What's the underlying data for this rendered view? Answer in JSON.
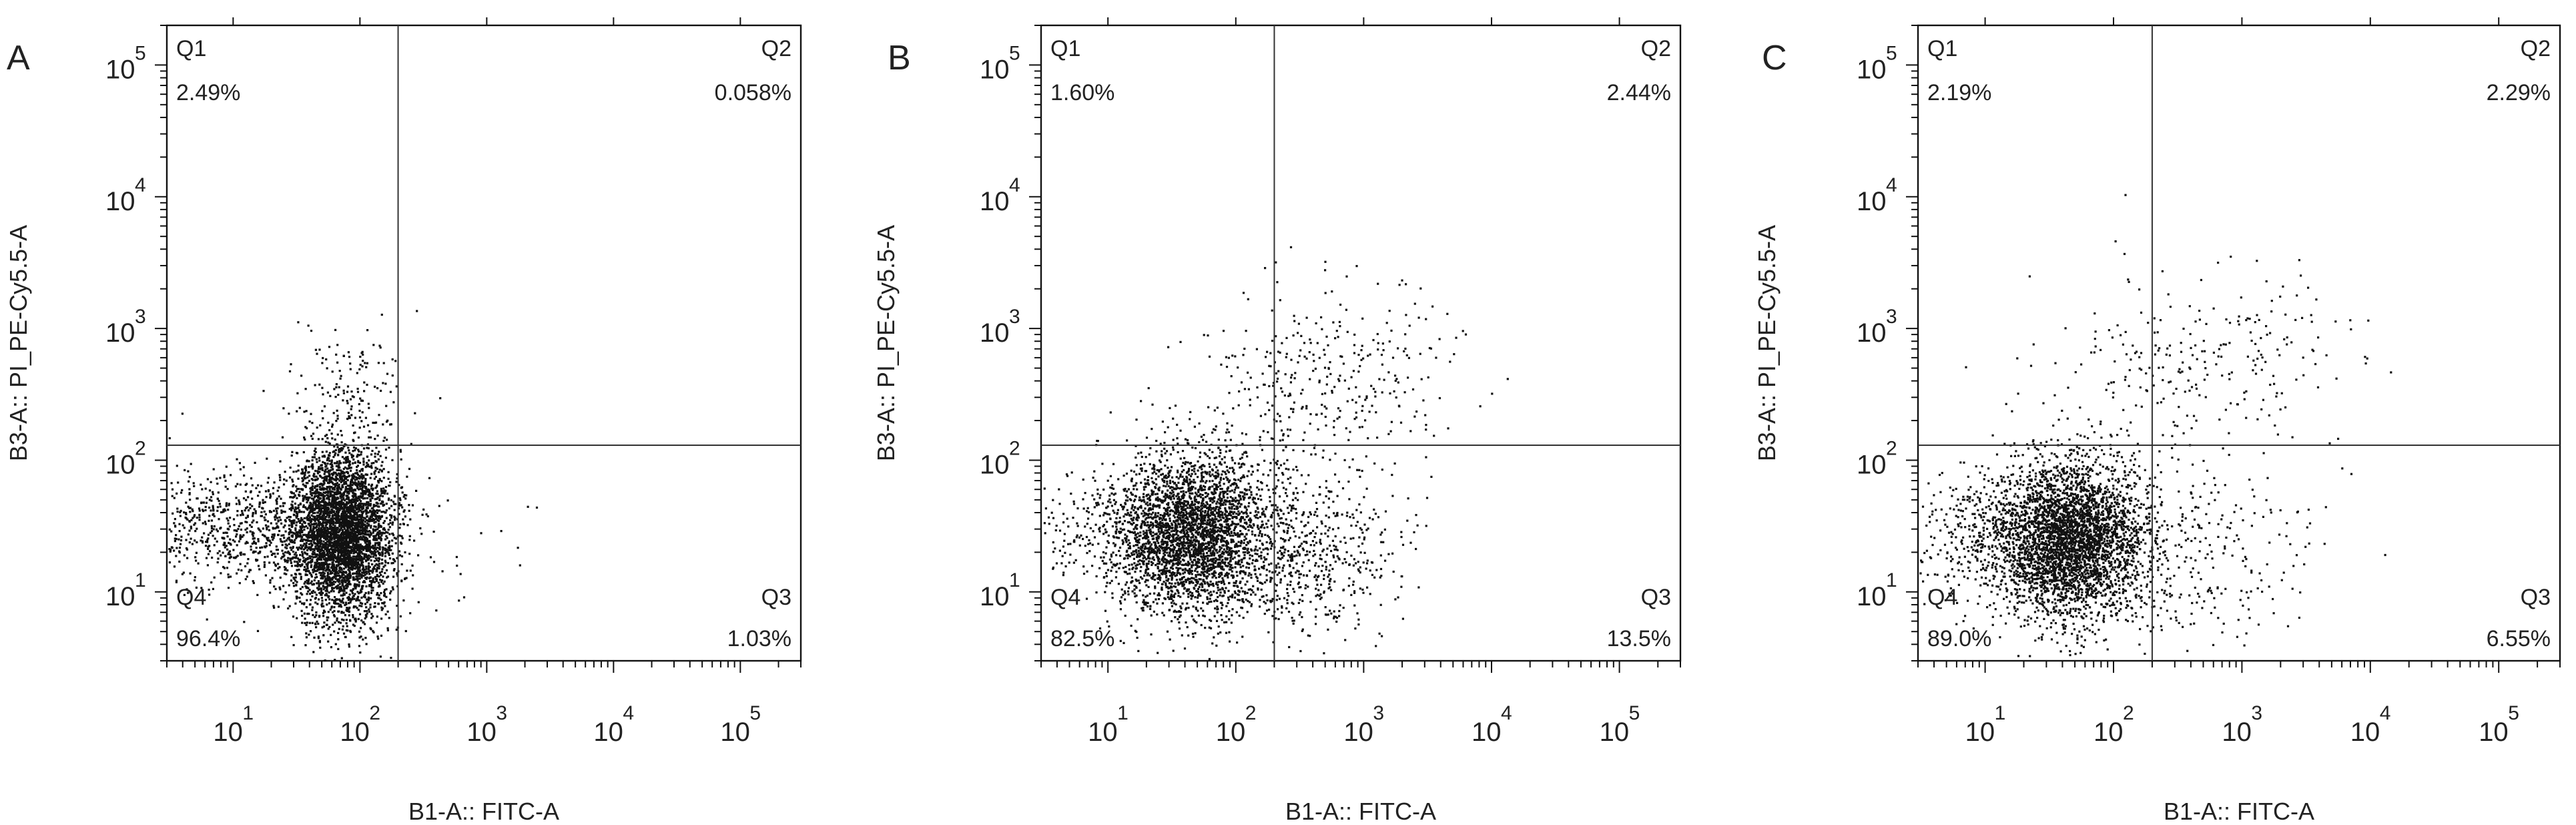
{
  "chart_data": [
    {
      "type": "scatter",
      "panel_label": "A",
      "xlabel": "B1-A:: FITC-A",
      "ylabel": "B3-A:: PI_PE-Cy5.5-A",
      "x_scale": "log",
      "y_scale": "log",
      "xlim": [
        3,
        300000
      ],
      "ylim": [
        3,
        200000
      ],
      "x_ticks": [
        {
          "label": "10",
          "exp": "1",
          "value": 10
        },
        {
          "label": "10",
          "exp": "2",
          "value": 100
        },
        {
          "label": "10",
          "exp": "3",
          "value": 1000
        },
        {
          "label": "10",
          "exp": "4",
          "value": 10000
        },
        {
          "label": "10",
          "exp": "5",
          "value": 100000
        }
      ],
      "y_ticks": [
        {
          "label": "10",
          "exp": "1",
          "value": 10
        },
        {
          "label": "10",
          "exp": "2",
          "value": 100
        },
        {
          "label": "10",
          "exp": "3",
          "value": 1000
        },
        {
          "label": "10",
          "exp": "4",
          "value": 10000
        },
        {
          "label": "10",
          "exp": "5",
          "value": 100000
        }
      ],
      "gate": {
        "x": 200,
        "y": 130
      },
      "quadrants": [
        {
          "name": "Q1",
          "percent": "2.49%"
        },
        {
          "name": "Q2",
          "percent": "0.058%"
        },
        {
          "name": "Q3",
          "percent": "1.03%"
        },
        {
          "name": "Q4",
          "percent": "96.4%"
        }
      ],
      "clusters": [
        {
          "n": 4200,
          "mx": 1.85,
          "sx": 0.2,
          "my": 1.45,
          "sy": 0.32
        },
        {
          "n": 700,
          "mx": 1.0,
          "sx": 0.4,
          "my": 1.5,
          "sy": 0.22
        },
        {
          "n": 140,
          "mx": 1.9,
          "sx": 0.25,
          "my": 2.55,
          "sy": 0.28
        },
        {
          "n": 60,
          "mx": 2.0,
          "sx": 0.7,
          "my": 1.4,
          "sy": 0.4
        }
      ],
      "seed": 11
    },
    {
      "type": "scatter",
      "panel_label": "B",
      "xlabel": "B1-A:: FITC-A",
      "ylabel": "B3-A:: PI_PE-Cy5.5-A",
      "x_scale": "log",
      "y_scale": "log",
      "xlim": [
        3,
        300000
      ],
      "ylim": [
        3,
        200000
      ],
      "x_ticks": [
        {
          "label": "10",
          "exp": "1",
          "value": 10
        },
        {
          "label": "10",
          "exp": "2",
          "value": 100
        },
        {
          "label": "10",
          "exp": "3",
          "value": 1000
        },
        {
          "label": "10",
          "exp": "4",
          "value": 10000
        },
        {
          "label": "10",
          "exp": "5",
          "value": 100000
        }
      ],
      "y_ticks": [
        {
          "label": "10",
          "exp": "1",
          "value": 10
        },
        {
          "label": "10",
          "exp": "2",
          "value": 100
        },
        {
          "label": "10",
          "exp": "3",
          "value": 1000
        },
        {
          "label": "10",
          "exp": "4",
          "value": 10000
        },
        {
          "label": "10",
          "exp": "5",
          "value": 100000
        }
      ],
      "gate": {
        "x": 200,
        "y": 130
      },
      "quadrants": [
        {
          "name": "Q1",
          "percent": "1.60%"
        },
        {
          "name": "Q2",
          "percent": "2.44%"
        },
        {
          "name": "Q3",
          "percent": "13.5%"
        },
        {
          "name": "Q4",
          "percent": "82.5%"
        }
      ],
      "clusters": [
        {
          "n": 3000,
          "mx": 1.65,
          "sx": 0.3,
          "my": 1.45,
          "sy": 0.3
        },
        {
          "n": 600,
          "mx": 2.55,
          "sx": 0.35,
          "my": 1.3,
          "sy": 0.35
        },
        {
          "n": 350,
          "mx": 2.7,
          "sx": 0.5,
          "my": 2.6,
          "sy": 0.35
        },
        {
          "n": 400,
          "mx": 1.1,
          "sx": 0.45,
          "my": 1.45,
          "sy": 0.25
        }
      ],
      "seed": 23
    },
    {
      "type": "scatter",
      "panel_label": "C",
      "xlabel": "B1-A:: FITC-A",
      "ylabel": "B3-A:: PI_PE-Cy5.5-A",
      "x_scale": "log",
      "y_scale": "log",
      "xlim": [
        3,
        300000
      ],
      "ylim": [
        3,
        200000
      ],
      "x_ticks": [
        {
          "label": "10",
          "exp": "1",
          "value": 10
        },
        {
          "label": "10",
          "exp": "2",
          "value": 100
        },
        {
          "label": "10",
          "exp": "3",
          "value": 1000
        },
        {
          "label": "10",
          "exp": "4",
          "value": 10000
        },
        {
          "label": "10",
          "exp": "5",
          "value": 100000
        }
      ],
      "y_ticks": [
        {
          "label": "10",
          "exp": "1",
          "value": 10
        },
        {
          "label": "10",
          "exp": "2",
          "value": 100
        },
        {
          "label": "10",
          "exp": "3",
          "value": 1000
        },
        {
          "label": "10",
          "exp": "4",
          "value": 10000
        },
        {
          "label": "10",
          "exp": "5",
          "value": 100000
        }
      ],
      "gate": {
        "x": 200,
        "y": 130
      },
      "quadrants": [
        {
          "name": "Q1",
          "percent": "2.19%"
        },
        {
          "name": "Q2",
          "percent": "2.29%"
        },
        {
          "name": "Q3",
          "percent": "6.55%"
        },
        {
          "name": "Q4",
          "percent": "89.0%"
        }
      ],
      "clusters": [
        {
          "n": 3500,
          "mx": 1.65,
          "sx": 0.28,
          "my": 1.4,
          "sy": 0.3
        },
        {
          "n": 500,
          "mx": 1.05,
          "sx": 0.4,
          "my": 1.45,
          "sy": 0.25
        },
        {
          "n": 300,
          "mx": 2.6,
          "sx": 0.45,
          "my": 1.3,
          "sy": 0.35
        },
        {
          "n": 260,
          "mx": 2.65,
          "sx": 0.55,
          "my": 2.7,
          "sy": 0.35
        }
      ],
      "seed": 37
    }
  ]
}
